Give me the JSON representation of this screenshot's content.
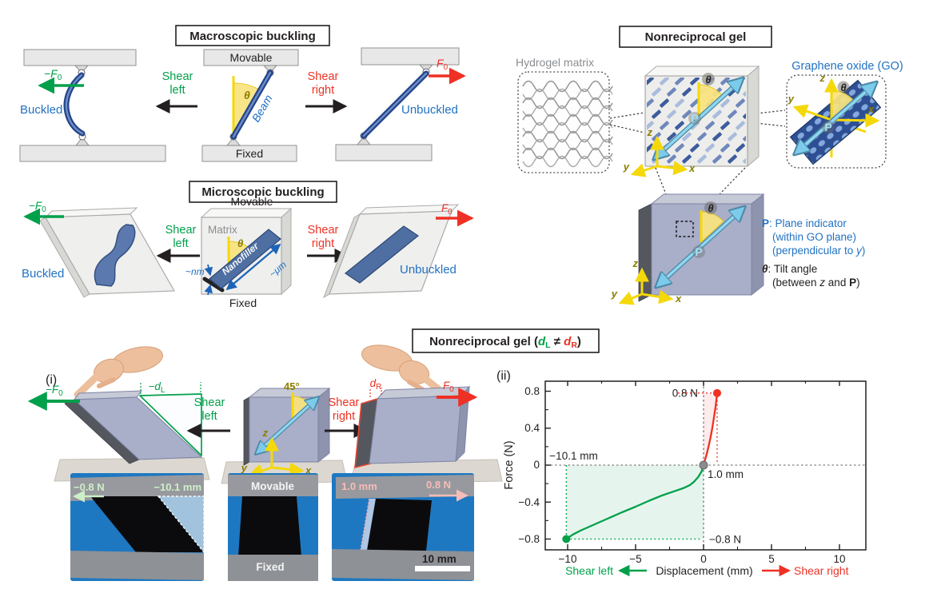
{
  "colors": {
    "green": "#00A04B",
    "red": "#EE3124",
    "blue": "#2272C3",
    "olive": "#8B7D00",
    "yellow": "#F5D80A",
    "cyan_arrow": "#7CCBEA",
    "navy_beam": "#24458C",
    "slab_blue": "#4F6FA3",
    "cube_lavender": "#A9AEC9",
    "photo_blue": "#1E78C1",
    "pale_green": "#CDEFC8",
    "pale_pink": "#F6BDB8"
  },
  "macro": {
    "title": "Macroscopic buckling",
    "buckled": "Buckled",
    "unbuckled": "Unbuckled",
    "force_neg": "−F",
    "force_pos": "F",
    "force_sub": "0",
    "shear_l1": "Shear",
    "shear_l2": "left",
    "shear_r1": "Shear",
    "shear_r2": "right",
    "movable": "Movable",
    "fixed": "Fixed",
    "beam": "Beam",
    "theta": "θ"
  },
  "micro": {
    "title": "Microscopic buckling",
    "buckled": "Buckled",
    "unbuckled": "Unbuckled",
    "matrix": "Matrix",
    "nanofiller": "Nanofiller",
    "um": "~μm",
    "nm": "~nm",
    "movable": "Movable",
    "fixed": "Fixed",
    "theta": "θ",
    "force_neg": "−F",
    "force_pos": "F",
    "force_sub": "0",
    "shear_l1": "Shear",
    "shear_l2": "left",
    "shear_r1": "Shear",
    "shear_r2": "right"
  },
  "gel": {
    "title": "Nonreciprocal gel",
    "hydrogel": "Hydrogel matrix",
    "go": "Graphene oxide (GO)",
    "p": "P",
    "theta": "θ",
    "x": "x",
    "y": "y",
    "z": "z",
    "legend_p_term": "P",
    "legend_p_rest": ": Plane indicator",
    "legend_p2": "(within GO plane)",
    "legend_p3a": "(perpendicular to ",
    "legend_p3b": "y",
    "legend_p3c": ")",
    "legend_t_term": "θ",
    "legend_t_rest": ": Tilt angle",
    "legend_t2a": "(between ",
    "legend_t2b": "z",
    "legend_t2c": " and ",
    "legend_t2d": "P",
    "legend_t2e": ")"
  },
  "bottom": {
    "label_i": "(i)",
    "label_ii": "(ii)",
    "title_pre": "Nonreciprocal gel (",
    "title_dl": "d",
    "title_dl_sub": "L",
    "title_neq": " ≠ ",
    "title_dr": "d",
    "title_dr_sub": "R",
    "title_close": ")",
    "angle45": "45°",
    "force_neg": "−F",
    "force_pos": "F",
    "force_sub": "0",
    "dl": "−d",
    "dl_sub": "L",
    "dr": "d",
    "dr_sub": "R",
    "shear_l1": "Shear",
    "shear_l2": "left",
    "shear_r1": "Shear",
    "shear_r2": "right",
    "x": "x",
    "y": "y",
    "z": "z",
    "photo1_force": "−0.8 N",
    "photo1_disp": "−10.1 mm",
    "photo2_top": "Movable",
    "photo2_bottom": "Fixed",
    "photo3_disp": "1.0 mm",
    "photo3_force": "0.8 N",
    "photo3_scale": "10 mm"
  },
  "chart_data": {
    "type": "line",
    "title": "",
    "xlabel": "Displacement (mm)",
    "ylabel": "Force (N)",
    "x_direction_left": "Shear left",
    "x_direction_right": "Shear right",
    "xlim": [
      -11.6,
      11.9
    ],
    "ylim": [
      -0.92,
      0.92
    ],
    "xticks": [
      -10,
      -5,
      0,
      5,
      10
    ],
    "xtick_labels": [
      "−10",
      "−5",
      "0",
      "5",
      "10"
    ],
    "yticks": [
      0.8,
      0.4,
      0,
      -0.4,
      -0.8
    ],
    "ytick_labels": [
      "0.8",
      "0.4",
      "0",
      "−0.4",
      "−0.8"
    ],
    "xminor": [
      -7.5,
      -2.5,
      2.5,
      7.5
    ],
    "yminor": [
      0.6,
      0.2,
      -0.2,
      -0.6
    ],
    "grid": false,
    "legend_position": "none",
    "series": [
      {
        "name": "Shear left",
        "color": "#00A04B",
        "x": [
          0,
          -0.15,
          -0.4,
          -0.7,
          -1,
          -1.5,
          -2,
          -2.5,
          -3,
          -4,
          -5,
          -6,
          -7,
          -8,
          -9,
          -9.6,
          -10.1
        ],
        "y": [
          0,
          -0.07,
          -0.13,
          -0.18,
          -0.215,
          -0.25,
          -0.275,
          -0.3,
          -0.325,
          -0.385,
          -0.45,
          -0.51,
          -0.575,
          -0.64,
          -0.705,
          -0.75,
          -0.8
        ]
      },
      {
        "name": "Shear right",
        "color": "#EE3124",
        "x": [
          0,
          0.12,
          0.25,
          0.38,
          0.5,
          0.62,
          0.72,
          0.8,
          0.88,
          0.95,
          1.0
        ],
        "y": [
          0,
          0.06,
          0.13,
          0.21,
          0.29,
          0.38,
          0.47,
          0.55,
          0.63,
          0.71,
          0.78
        ]
      }
    ],
    "markers": [
      {
        "x": -10.1,
        "y": -0.8,
        "color": "#00A04B",
        "label": "shear-left-endpoint"
      },
      {
        "x": 0,
        "y": 0,
        "color": "#8A8D8F",
        "label": "origin"
      },
      {
        "x": 1.0,
        "y": 0.78,
        "color": "#EE3124",
        "label": "shear-right-endpoint"
      }
    ],
    "annotations": {
      "force_right": "0.8 N",
      "disp_right": "1.0 mm",
      "disp_left": "−10.1 mm",
      "force_left": "−0.8 N"
    }
  }
}
